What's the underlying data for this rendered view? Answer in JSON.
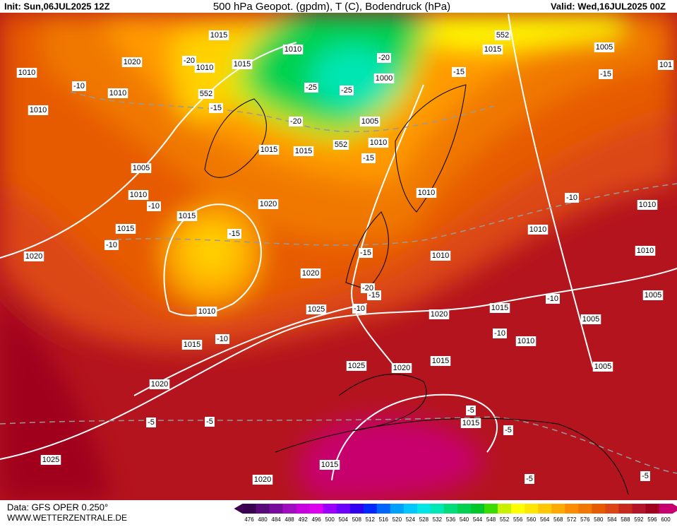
{
  "header": {
    "init": "Init: Sun,06JUL2025 12Z",
    "title": "500 hPa Geopot. (gpdm), T (C), Bodendruck (hPa)",
    "valid": "Valid: Wed,16JUL2025 00Z"
  },
  "footer": {
    "data": "Data: GFS OPER 0.250°",
    "site": "WWW.WETTERZENTRALE.DE"
  },
  "colorbar": {
    "labels": [
      476,
      480,
      484,
      488,
      492,
      496,
      500,
      504,
      508,
      512,
      516,
      520,
      524,
      528,
      532,
      536,
      540,
      544,
      548,
      552,
      556,
      560,
      564,
      568,
      572,
      576,
      580,
      584,
      588,
      592,
      596,
      600
    ],
    "colors": [
      "#3c0050",
      "#5a0a78",
      "#780c9c",
      "#a00cc0",
      "#c800e0",
      "#e000f0",
      "#9b00ff",
      "#6e00ff",
      "#3200f0",
      "#0028ff",
      "#0064ff",
      "#00a0ff",
      "#00c8ff",
      "#00e6e6",
      "#00e6b4",
      "#00dc78",
      "#00d250",
      "#00c828",
      "#3cdc00",
      "#c8f000",
      "#ffff00",
      "#ffe600",
      "#ffc800",
      "#ffaa00",
      "#ff8c00",
      "#f07800",
      "#e65a00",
      "#dc4614",
      "#c8281e",
      "#b41428",
      "#a0001e",
      "#c8006e"
    ]
  },
  "map_labels": [
    "1015",
    "1010",
    "1015",
    "1020",
    "-20",
    "1010",
    "1010",
    "-10",
    "1010",
    "1010",
    "552",
    "-15",
    "-25",
    "-20",
    "1000",
    "-25",
    "1005",
    "-20",
    "552",
    "1010",
    "1015",
    "1015",
    "-15",
    "1005",
    "1010",
    "-10",
    "1015",
    "1020",
    "1015",
    "-15",
    "-10",
    "1020",
    "1010",
    "1010",
    "-10",
    "1010",
    "1010",
    "-15",
    "1010",
    "1020",
    "-20",
    "-15",
    "-10",
    "1025",
    "1010",
    "1020",
    "1015",
    "-10",
    "1005",
    "1005",
    "-10",
    "1010",
    "1015",
    "-10",
    "1025",
    "1020",
    "1015",
    "1005",
    "1020",
    "-5",
    "-5",
    "-5",
    "1015",
    "-5",
    "1025",
    "1015",
    "1020",
    "-5",
    "-5",
    "552",
    "1015",
    "1005",
    "-15",
    "-15",
    "101"
  ]
}
